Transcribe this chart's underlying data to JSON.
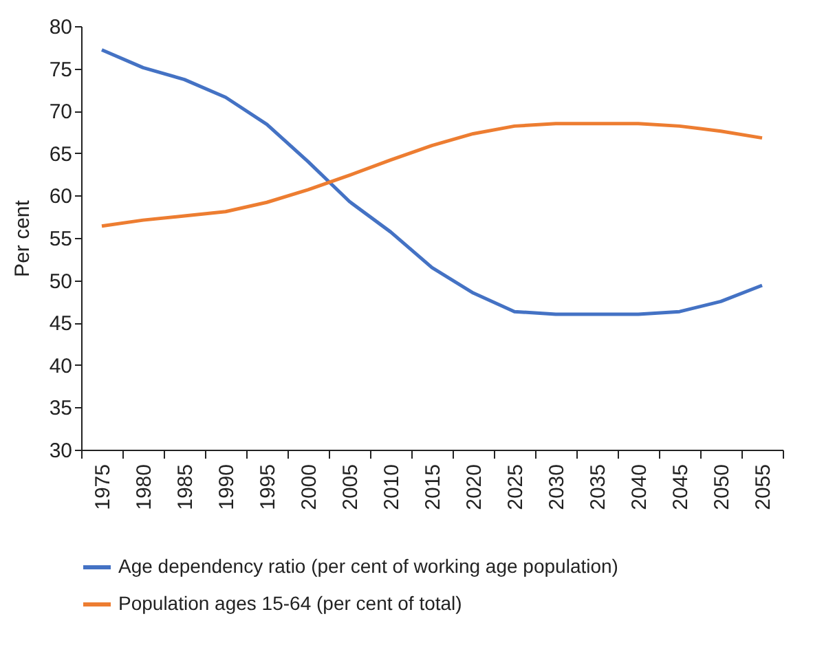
{
  "chart_data": {
    "type": "line",
    "ylabel": "Per cent",
    "categories": [
      "1975",
      "1980",
      "1985",
      "1990",
      "1995",
      "2000",
      "2005",
      "2010",
      "2015",
      "2020",
      "2025",
      "2030",
      "2035",
      "2040",
      "2045",
      "2050",
      "2055"
    ],
    "series": [
      {
        "name": "Age dependency ratio (per cent of working age population)",
        "color": "#4472c4",
        "values": [
          77.2,
          75.1,
          73.7,
          71.6,
          68.4,
          64.0,
          59.3,
          55.7,
          51.5,
          48.5,
          46.3,
          46.0,
          46.0,
          46.0,
          46.3,
          47.5,
          49.4
        ]
      },
      {
        "name": "Population ages 15-64 (per cent of total)",
        "color": "#ed7d31",
        "values": [
          56.4,
          57.1,
          57.6,
          58.1,
          59.2,
          60.7,
          62.4,
          64.2,
          65.9,
          67.3,
          68.2,
          68.5,
          68.5,
          68.5,
          68.2,
          67.6,
          66.8
        ]
      }
    ],
    "ylim": [
      30,
      80
    ],
    "yticks": [
      30,
      35,
      40,
      45,
      50,
      55,
      60,
      65,
      70,
      75,
      80
    ],
    "grid": false,
    "legend": "bottom",
    "marker": "none",
    "line_style": "solid"
  }
}
